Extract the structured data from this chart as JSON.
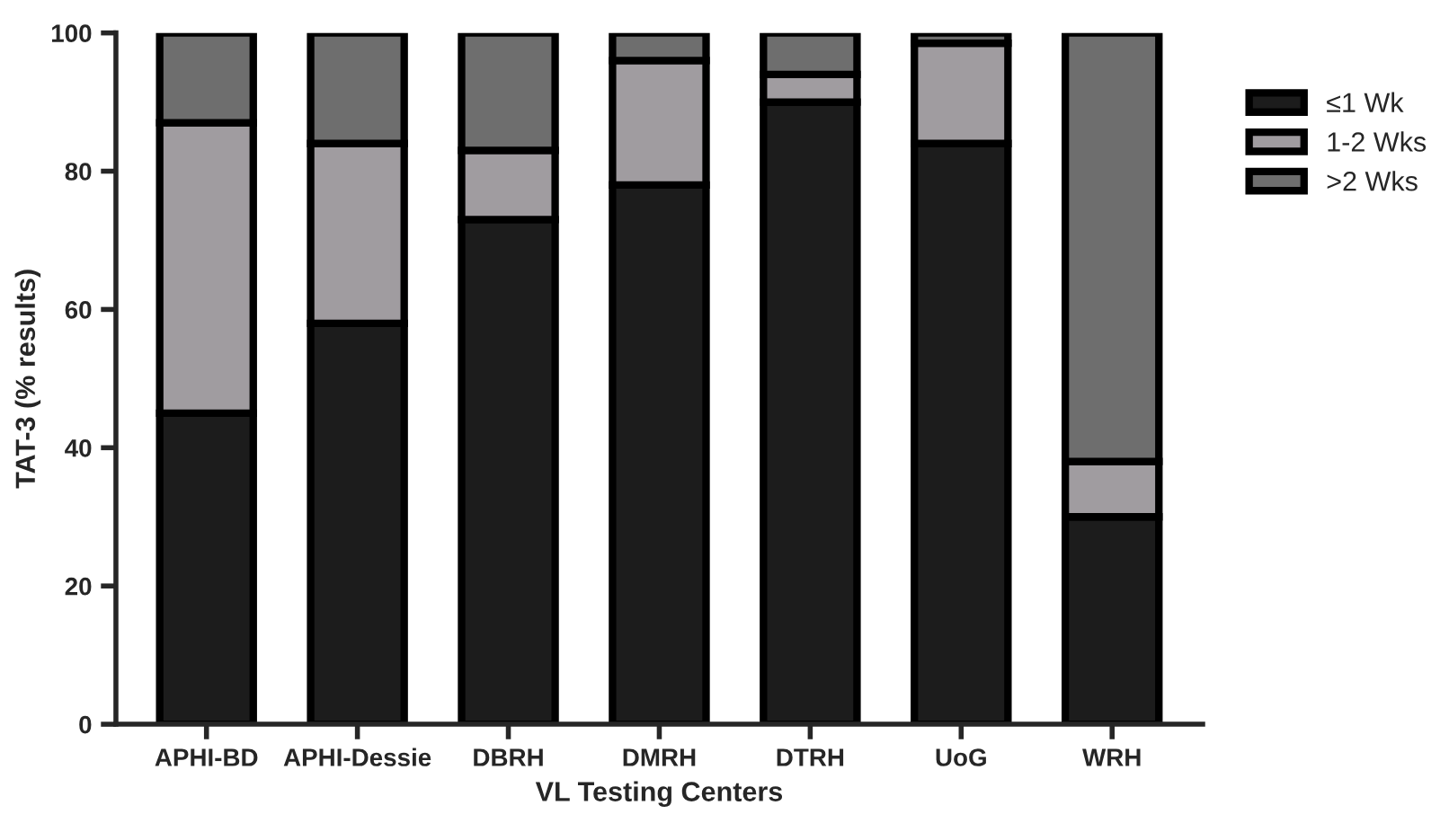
{
  "chart_data": {
    "type": "bar",
    "stacked": true,
    "xlabel": "VL Testing Centers",
    "ylabel": "TAT-3 (% results)",
    "categories": [
      "APHI-BD",
      "APHI-Dessie",
      "DBRH",
      "DMRH",
      "DTRH",
      "UoG",
      "WRH"
    ],
    "series": [
      {
        "name": "≤1 Wk",
        "color": "#1c1c1c",
        "values": [
          45,
          58,
          73,
          78,
          90,
          84,
          30
        ]
      },
      {
        "name": "1-2 Wks",
        "color": "#a09ca0",
        "values": [
          42,
          26,
          10,
          18,
          4,
          14.5,
          8
        ]
      },
      {
        "name": ">2 Wks",
        "color": "#6e6e6e",
        "values": [
          13,
          16,
          17,
          4,
          6,
          1.5,
          62
        ]
      }
    ],
    "ylim": [
      0,
      100
    ],
    "yticks": [
      0,
      20,
      40,
      60,
      80,
      100
    ],
    "grid": false,
    "legend": "top right"
  }
}
